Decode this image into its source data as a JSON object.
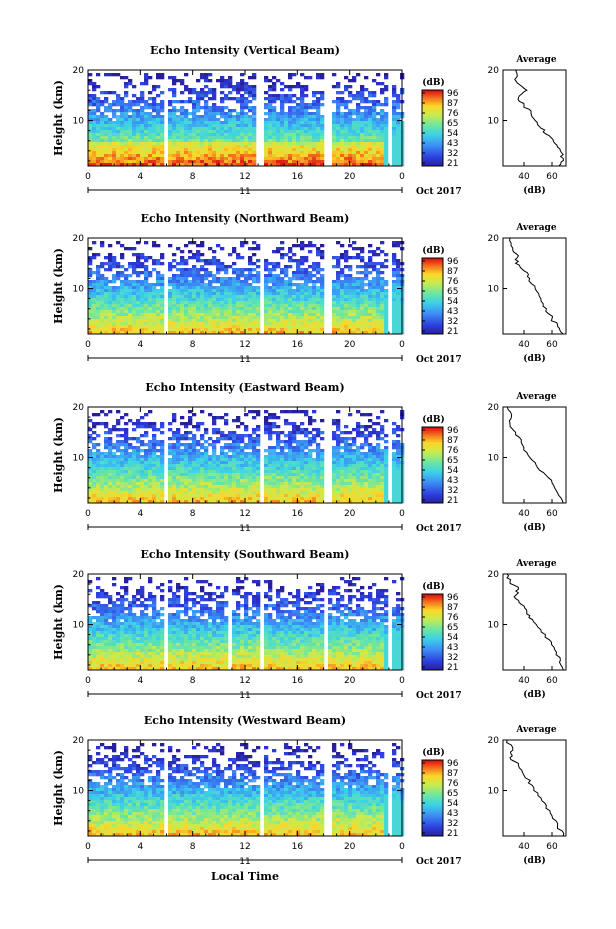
{
  "figure": {
    "xlabel": "Local Time",
    "day_label": "11",
    "month_label": "Oct 2017",
    "colorbar_unit": "(dB)",
    "colorbar_ticks": [
      "96",
      "87",
      "76",
      "65",
      "54",
      "43",
      "32",
      "21"
    ],
    "avg_title": "Average",
    "avg_xlabel": "(dB)",
    "avg_xticks": [
      "40",
      "60"
    ]
  },
  "chart_data": [
    {
      "type": "heatmap",
      "title": "Echo Intensity (Vertical Beam)",
      "ylabel": "Height (km)",
      "x_ticks": [
        "0",
        "4",
        "8",
        "12",
        "16",
        "20",
        "0"
      ],
      "y_ticks": [
        "20",
        "10"
      ],
      "xlim": [
        0,
        24
      ],
      "ylim": [
        1,
        20
      ],
      "colorbar": [
        21,
        96
      ],
      "gaps_hours": [
        [
          5.6,
          6.0
        ],
        [
          12.8,
          13.4
        ],
        [
          18.0,
          18.4
        ],
        [
          22.8,
          23.2
        ]
      ],
      "avg_profile": {
        "x": [
          34,
          35,
          42,
          36,
          40,
          45,
          48,
          52,
          58,
          62,
          66,
          68,
          65
        ],
        "y": [
          20,
          17.5,
          16,
          14.5,
          13,
          11.5,
          10,
          8.5,
          7,
          5.5,
          4,
          2.5,
          1
        ]
      }
    },
    {
      "type": "heatmap",
      "title": "Echo Intensity (Northward Beam)",
      "ylabel": "Height (km)",
      "x_ticks": [
        "0",
        "4",
        "8",
        "12",
        "16",
        "20",
        "0"
      ],
      "y_ticks": [
        "20",
        "10"
      ],
      "xlim": [
        0,
        24
      ],
      "ylim": [
        1,
        20
      ],
      "colorbar": [
        21,
        96
      ],
      "gaps_hours": [
        [
          5.6,
          6.0
        ],
        [
          12.9,
          13.3
        ],
        [
          18.0,
          18.4
        ],
        [
          22.8,
          23.2
        ]
      ],
      "avg_profile": {
        "x": [
          30,
          32,
          36,
          34,
          40,
          44,
          48,
          52,
          56,
          60,
          64,
          68
        ],
        "y": [
          20,
          18,
          16.5,
          15,
          13.5,
          12,
          10,
          8,
          6,
          4,
          2.5,
          1
        ]
      }
    },
    {
      "type": "heatmap",
      "title": "Echo Intensity (Eastward Beam)",
      "ylabel": "Height (km)",
      "x_ticks": [
        "0",
        "4",
        "8",
        "12",
        "16",
        "20",
        "0"
      ],
      "y_ticks": [
        "20",
        "10"
      ],
      "xlim": [
        0,
        24
      ],
      "ylim": [
        1,
        20
      ],
      "colorbar": [
        21,
        96
      ],
      "colorbar_ticks": [
        "96",
        "87",
        "76",
        "65",
        "54",
        "43",
        "32",
        "21"
      ],
      "gaps_hours": [
        [
          5.6,
          6.0
        ],
        [
          12.9,
          13.3
        ],
        [
          18.0,
          18.4
        ],
        [
          22.8,
          23.2
        ]
      ],
      "avg_profile": {
        "x": [
          28,
          31,
          30,
          34,
          38,
          42,
          48,
          54,
          60,
          64,
          68
        ],
        "y": [
          20,
          18,
          16.5,
          15,
          13,
          11,
          9,
          7,
          5,
          3,
          1
        ]
      }
    },
    {
      "type": "heatmap",
      "title": "Echo Intensity (Southward Beam)",
      "ylabel": "Height (km)",
      "x_ticks": [
        "0",
        "4",
        "8",
        "12",
        "16",
        "20",
        "0"
      ],
      "y_ticks": [
        "20",
        "10"
      ],
      "xlim": [
        0,
        24
      ],
      "ylim": [
        1,
        20
      ],
      "colorbar": [
        21,
        96
      ],
      "gaps_hours": [
        [
          5.6,
          6.0
        ],
        [
          10.6,
          10.9
        ],
        [
          12.9,
          13.3
        ],
        [
          17.9,
          18.3
        ],
        [
          22.8,
          23.2
        ]
      ],
      "avg_profile": {
        "x": [
          28,
          30,
          36,
          33,
          38,
          42,
          46,
          52,
          58,
          62,
          66,
          68
        ],
        "y": [
          20,
          18.5,
          17,
          15.5,
          14,
          12.5,
          11,
          9,
          7,
          5,
          3,
          1
        ]
      }
    },
    {
      "type": "heatmap",
      "title": "Echo Intensity (Westward Beam)",
      "ylabel": "Height (km)",
      "x_ticks": [
        "0",
        "4",
        "8",
        "12",
        "16",
        "20",
        "0"
      ],
      "y_ticks": [
        "20",
        "10"
      ],
      "xlim": [
        0,
        24
      ],
      "ylim": [
        1,
        20
      ],
      "colorbar": [
        21,
        96
      ],
      "gaps_hours": [
        [
          5.6,
          6.0
        ],
        [
          12.9,
          13.3
        ],
        [
          18.0,
          18.4
        ],
        [
          22.8,
          23.2
        ]
      ],
      "avg_profile": {
        "x": [
          28,
          32,
          30,
          36,
          40,
          46,
          50,
          56,
          60,
          64,
          68
        ],
        "y": [
          20,
          18,
          16.5,
          15,
          13,
          11,
          9,
          7,
          5,
          3,
          1
        ]
      }
    }
  ]
}
